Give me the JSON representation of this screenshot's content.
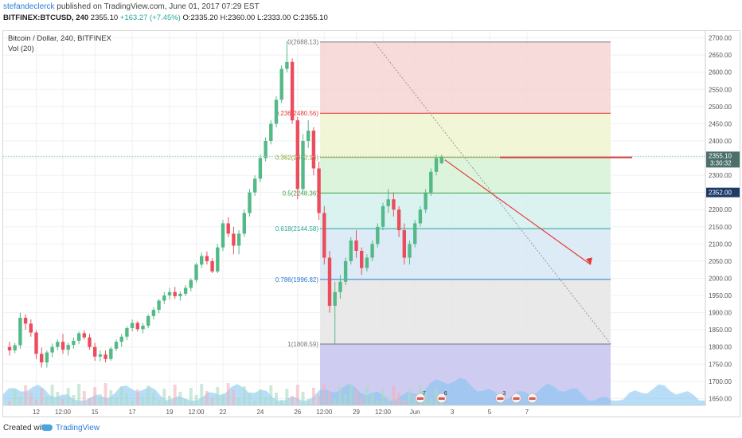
{
  "header": {
    "author": "stefandeclerck",
    "published_text": "published on TradingView.com, June 01, 2017 07:29 EST",
    "symbol": "BITFINEX:BTCUSD, 240",
    "last": "2355.10",
    "change": "+163.27 (+7.45%)",
    "o": "2335.20",
    "h": "2360.00",
    "l": "2333.00",
    "c": "2355.10"
  },
  "legend": {
    "title": "Bitcoin / Dollar, 240, BITFINEX",
    "vol": "Vol (20)"
  },
  "price_tags": {
    "last_price": "2355.10",
    "countdown": "3:30:32",
    "second": "2352.00"
  },
  "fib": [
    {
      "label": "0(2688.13)",
      "price": 2688.13,
      "color": "#777777"
    },
    {
      "label": "0.236(2480.56)",
      "price": 2480.56,
      "color": "#e53935"
    },
    {
      "label": "0.382(2352.15)",
      "price": 2352.15,
      "color": "#9aa833"
    },
    {
      "label": "0.5(2248.36)",
      "price": 2248.36,
      "color": "#43a047"
    },
    {
      "label": "0.618(2144.58)",
      "price": 2144.58,
      "color": "#26a69a"
    },
    {
      "label": "0.786(1996.82)",
      "price": 1996.82,
      "color": "#2b7cd6"
    },
    {
      "label": "1(1808.59)",
      "price": 1808.59,
      "color": "#777777"
    }
  ],
  "y_axis": [
    "2700.00",
    "2650.00",
    "2600.00",
    "2550.00",
    "2500.00",
    "2450.00",
    "2400.00",
    "2350.00",
    "2300.00",
    "2250.00",
    "2200.00",
    "2150.00",
    "2100.00",
    "2050.00",
    "2000.00",
    "1950.00",
    "1900.00",
    "1850.00",
    "1800.00",
    "1750.00",
    "1700.00",
    "1650.00"
  ],
  "x_axis": [
    {
      "label": "12",
      "i": 5
    },
    {
      "label": "12:00",
      "i": 10
    },
    {
      "label": "15",
      "i": 16
    },
    {
      "label": "17",
      "i": 23
    },
    {
      "label": "19",
      "i": 30
    },
    {
      "label": "12:00",
      "i": 35
    },
    {
      "label": "22",
      "i": 40
    },
    {
      "label": "24",
      "i": 47
    },
    {
      "label": "26",
      "i": 54
    },
    {
      "label": "12:00",
      "i": 59
    },
    {
      "label": "29",
      "i": 65
    },
    {
      "label": "12:00",
      "i": 70
    },
    {
      "label": "Jun",
      "i": 76
    },
    {
      "label": "3",
      "i": 83
    },
    {
      "label": "5",
      "i": 90
    },
    {
      "label": "7",
      "i": 97
    }
  ],
  "event_badges": [
    {
      "text": "7",
      "i": 77
    },
    {
      "text": "6",
      "i": 81
    },
    {
      "text": "3",
      "i": 92
    },
    {
      "text": "",
      "i": 95
    },
    {
      "text": "",
      "i": 98
    }
  ],
  "footer": {
    "created": "Created with",
    "brand": "TradingView"
  },
  "colors": {
    "up": "#53b987",
    "down": "#eb4d5c",
    "grid": "#eef0f3",
    "volume_area": "#7ec3f0",
    "resistance": "#e53935"
  },
  "chart_data": {
    "type": "candlestick",
    "ylim": [
      1630,
      2720
    ],
    "candles": [
      [
        1800,
        1815,
        1775,
        1790
      ],
      [
        1790,
        1812,
        1782,
        1805
      ],
      [
        1805,
        1900,
        1795,
        1885
      ],
      [
        1885,
        1895,
        1850,
        1868
      ],
      [
        1868,
        1880,
        1830,
        1842
      ],
      [
        1842,
        1848,
        1765,
        1780
      ],
      [
        1780,
        1798,
        1740,
        1755
      ],
      [
        1755,
        1790,
        1740,
        1784
      ],
      [
        1784,
        1810,
        1770,
        1800
      ],
      [
        1800,
        1822,
        1790,
        1815
      ],
      [
        1815,
        1838,
        1780,
        1792
      ],
      [
        1792,
        1812,
        1775,
        1806
      ],
      [
        1806,
        1828,
        1795,
        1818
      ],
      [
        1818,
        1845,
        1808,
        1840
      ],
      [
        1840,
        1848,
        1822,
        1828
      ],
      [
        1828,
        1838,
        1792,
        1800
      ],
      [
        1800,
        1812,
        1760,
        1772
      ],
      [
        1772,
        1790,
        1758,
        1778
      ],
      [
        1778,
        1790,
        1755,
        1765
      ],
      [
        1765,
        1800,
        1760,
        1795
      ],
      [
        1795,
        1822,
        1788,
        1815
      ],
      [
        1815,
        1838,
        1800,
        1830
      ],
      [
        1830,
        1860,
        1820,
        1855
      ],
      [
        1855,
        1880,
        1845,
        1870
      ],
      [
        1870,
        1875,
        1845,
        1852
      ],
      [
        1852,
        1870,
        1840,
        1862
      ],
      [
        1862,
        1895,
        1855,
        1890
      ],
      [
        1890,
        1915,
        1880,
        1908
      ],
      [
        1908,
        1940,
        1898,
        1935
      ],
      [
        1935,
        1960,
        1925,
        1950
      ],
      [
        1950,
        1972,
        1938,
        1960
      ],
      [
        1960,
        1975,
        1940,
        1948
      ],
      [
        1948,
        1962,
        1935,
        1955
      ],
      [
        1955,
        1980,
        1948,
        1972
      ],
      [
        1972,
        2000,
        1962,
        1995
      ],
      [
        1995,
        2045,
        1988,
        2040
      ],
      [
        2040,
        2075,
        2030,
        2065
      ],
      [
        2065,
        2078,
        2040,
        2050
      ],
      [
        2050,
        2058,
        2015,
        2020
      ],
      [
        2020,
        2100,
        2015,
        2090
      ],
      [
        2090,
        2170,
        2080,
        2160
      ],
      [
        2160,
        2178,
        2120,
        2130
      ],
      [
        2130,
        2150,
        2070,
        2095
      ],
      [
        2095,
        2140,
        2070,
        2130
      ],
      [
        2130,
        2200,
        2120,
        2190
      ],
      [
        2190,
        2260,
        2180,
        2250
      ],
      [
        2250,
        2300,
        2240,
        2290
      ],
      [
        2290,
        2360,
        2280,
        2350
      ],
      [
        2350,
        2410,
        2340,
        2400
      ],
      [
        2400,
        2460,
        2390,
        2450
      ],
      [
        2450,
        2530,
        2440,
        2520
      ],
      [
        2520,
        2620,
        2510,
        2610
      ],
      [
        2610,
        2690,
        2600,
        2630
      ],
      [
        2630,
        2640,
        2450,
        2460
      ],
      [
        2460,
        2470,
        2230,
        2260
      ],
      [
        2260,
        2420,
        2250,
        2400
      ],
      [
        2400,
        2460,
        2380,
        2430
      ],
      [
        2430,
        2440,
        2300,
        2320
      ],
      [
        2320,
        2340,
        2170,
        2190
      ],
      [
        2190,
        2210,
        2040,
        2060
      ],
      [
        2060,
        2080,
        1900,
        1920
      ],
      [
        1920,
        1990,
        1810,
        1960
      ],
      [
        1960,
        2010,
        1940,
        1990
      ],
      [
        1990,
        2060,
        1980,
        2050
      ],
      [
        2050,
        2120,
        2040,
        2110
      ],
      [
        2110,
        2140,
        2060,
        2080
      ],
      [
        2080,
        2090,
        2010,
        2030
      ],
      [
        2030,
        2070,
        2020,
        2060
      ],
      [
        2060,
        2110,
        2050,
        2100
      ],
      [
        2100,
        2160,
        2090,
        2150
      ],
      [
        2150,
        2220,
        2140,
        2210
      ],
      [
        2210,
        2260,
        2190,
        2230
      ],
      [
        2230,
        2250,
        2180,
        2200
      ],
      [
        2200,
        2210,
        2120,
        2140
      ],
      [
        2140,
        2160,
        2040,
        2060
      ],
      [
        2060,
        2110,
        2040,
        2100
      ],
      [
        2100,
        2170,
        2090,
        2160
      ],
      [
        2160,
        2210,
        2150,
        2200
      ],
      [
        2200,
        2260,
        2190,
        2250
      ],
      [
        2250,
        2320,
        2240,
        2310
      ],
      [
        2310,
        2360,
        2300,
        2350
      ],
      [
        2335,
        2360,
        2333,
        2355
      ]
    ],
    "resistance_price": 2352.15,
    "projection": {
      "from_price": 2345,
      "to_price": 2040
    }
  }
}
